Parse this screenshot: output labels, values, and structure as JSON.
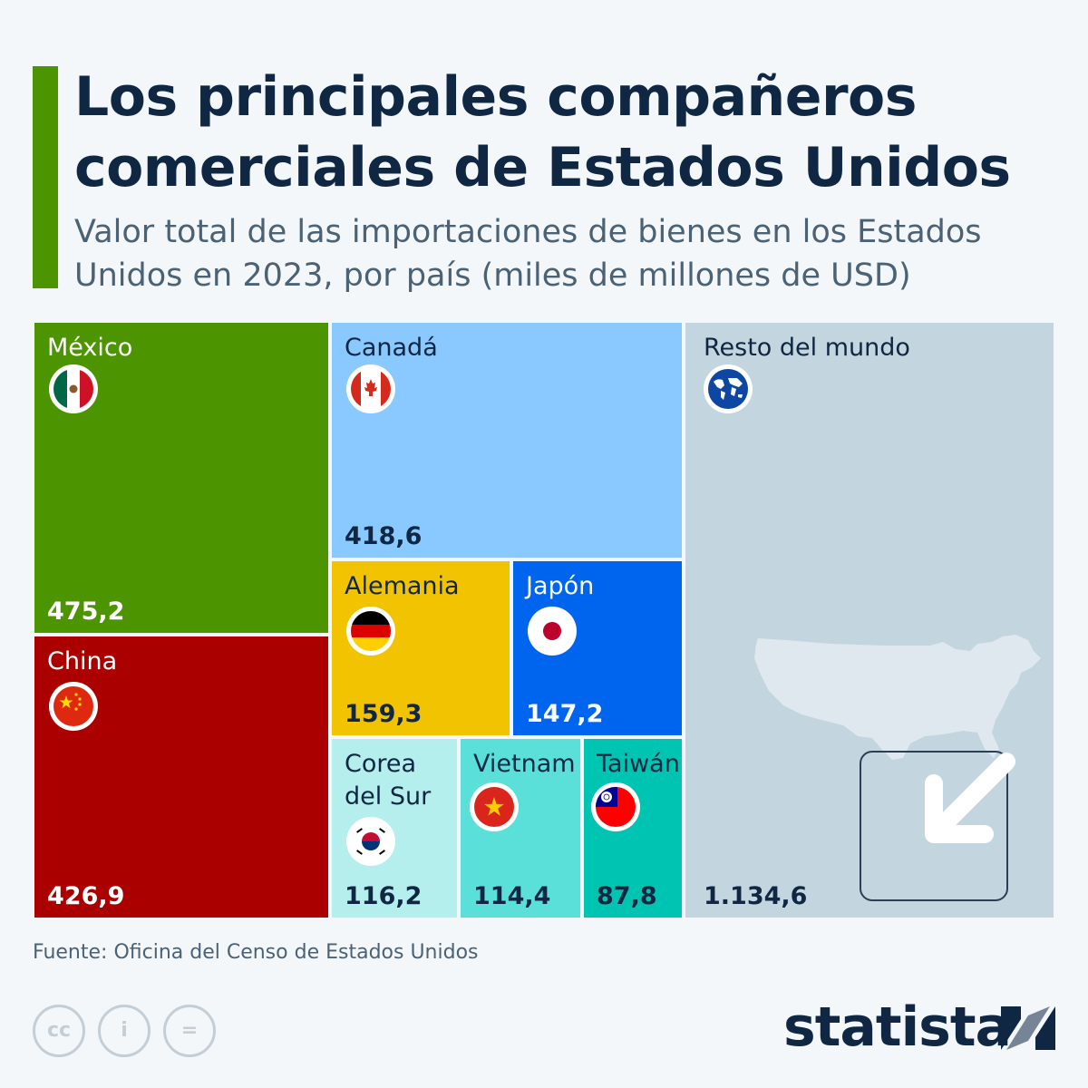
{
  "header": {
    "title_line1": "Los principales compañeros",
    "title_line2": "comerciales de Estados Unidos",
    "subtitle_line1": "Valor total de las importaciones de bienes en los Estados",
    "subtitle_line2": "Unidos en 2023, por país (miles de millones de USD)"
  },
  "chart_data": {
    "type": "treemap",
    "title": "Los principales compañeros comerciales de Estados Unidos",
    "subtitle": "Valor total de las importaciones de bienes en los Estados Unidos en 2023, por país (miles de millones de USD)",
    "categories": [
      "México",
      "China",
      "Canadá",
      "Alemania",
      "Japón",
      "Corea del Sur",
      "Vietnam",
      "Taiwán",
      "Resto del mundo"
    ],
    "values": [
      475.2,
      426.9,
      418.6,
      159.3,
      147.2,
      116.2,
      114.4,
      87.8,
      1134.6
    ],
    "value_labels": [
      "475,2",
      "426,9",
      "418,6",
      "159,3",
      "147,2",
      "116,2",
      "114,4",
      "87,8",
      "1.134,6"
    ],
    "unit": "miles de millones de USD"
  },
  "tiles": {
    "mexico": {
      "name": "México",
      "value": "475,2",
      "color": "#4c9400"
    },
    "china": {
      "name": "China",
      "value": "426,9",
      "color": "#aa0000"
    },
    "canada": {
      "name": "Canadá",
      "value": "418,6",
      "color": "#89c9ff"
    },
    "alemania": {
      "name": "Alemania",
      "value": "159,3",
      "color": "#f2c300"
    },
    "japon": {
      "name": "Japón",
      "value": "147,2",
      "color": "#0065ee"
    },
    "corea": {
      "name_line1": "Corea",
      "name_line2": "del Sur",
      "value": "116,2",
      "color": "#b4efed"
    },
    "vietnam": {
      "name": "Vietnam",
      "value": "114,4",
      "color": "#5ae0d8"
    },
    "taiwan": {
      "name": "Taiwán",
      "value": "87,8",
      "color": "#00c4b2"
    },
    "resto": {
      "name": "Resto del mundo",
      "value": "1.134,6",
      "color": "#c3d5de"
    }
  },
  "colors": {
    "accent": "#4c9400",
    "title": "#0f2743",
    "dark_text": "#0f2743",
    "light_text": "#ffffff",
    "background": "#f3f7fa"
  },
  "footer": {
    "source": "Fuente: Oficina del Censo de Estados Unidos",
    "brand": "statista",
    "license_icons": [
      "cc-icon",
      "attribution-icon",
      "no-derivatives-icon"
    ],
    "license_glyphs": [
      "cc",
      "i",
      "="
    ]
  }
}
